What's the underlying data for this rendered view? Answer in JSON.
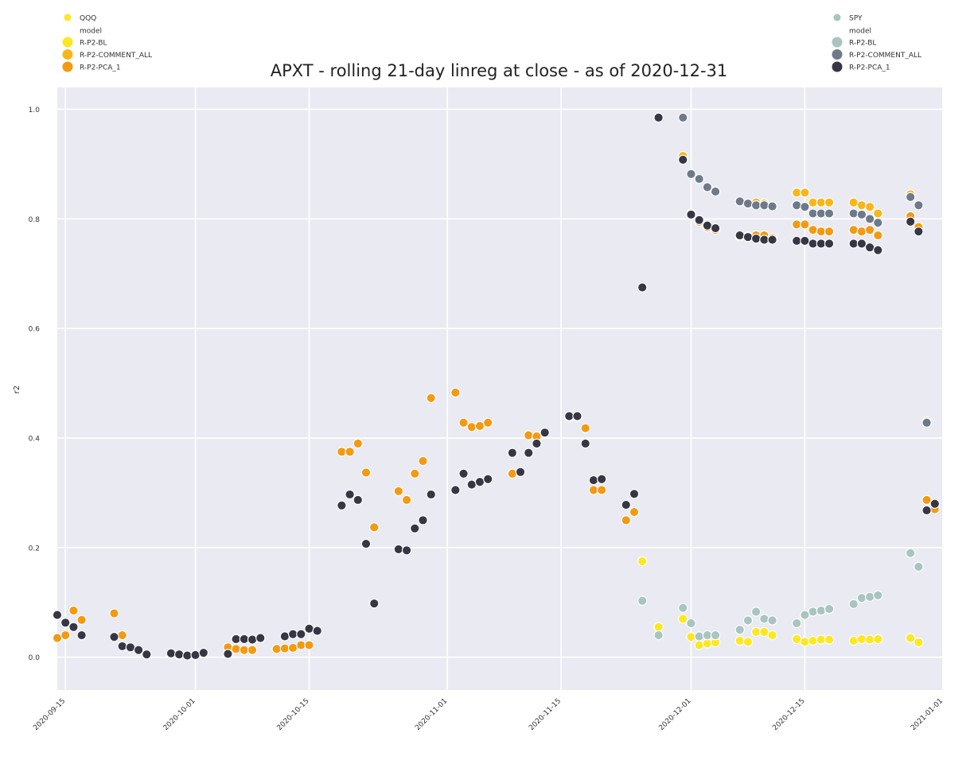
{
  "chart_data": {
    "type": "scatter",
    "title": "APXT - rolling 21-day linreg at close - as of 2020-12-31",
    "xlabel": "",
    "ylabel": "r2",
    "xlim": [
      "2020-09-14",
      "2021-01-01"
    ],
    "ylim": [
      -0.06,
      1.04
    ],
    "x_ticks": [
      "2020-09-15",
      "2020-10-01",
      "2020-10-15",
      "2020-11-01",
      "2020-11-15",
      "2020-12-01",
      "2020-12-15",
      "2021-01-01"
    ],
    "y_ticks": [
      "0.0",
      "0.2",
      "0.4",
      "0.6",
      "0.8",
      "1.0"
    ],
    "grid": true,
    "legends": [
      {
        "placement": "top-left",
        "title": "QQQ",
        "subtitle": "model",
        "items": [
          {
            "label": "R-P2-BL",
            "color": "#fde725"
          },
          {
            "label": "R-P2-COMMENT_ALL",
            "color": "#f7b718"
          },
          {
            "label": "R-P2-PCA_1",
            "color": "#f29a12"
          }
        ]
      },
      {
        "placement": "top-right",
        "title": "SPY",
        "subtitle": "model",
        "items": [
          {
            "label": "R-P2-BL",
            "color": "#a8c5c0"
          },
          {
            "label": "R-P2-COMMENT_ALL",
            "color": "#6e7a8a"
          },
          {
            "label": "R-P2-PCA_1",
            "color": "#363645"
          }
        ]
      }
    ],
    "series": [
      {
        "benchmark": "QQQ",
        "model": "R-P2-PCA_1",
        "color": "#f29a12",
        "points": [
          [
            "2020-09-14",
            0.035
          ],
          [
            "2020-09-15",
            0.04
          ],
          [
            "2020-09-16",
            0.085
          ],
          [
            "2020-09-17",
            0.068
          ],
          [
            "2020-09-21",
            0.08
          ],
          [
            "2020-09-22",
            0.04
          ],
          [
            "2020-09-28",
            0.006
          ],
          [
            "2020-09-29",
            0.004
          ],
          [
            "2020-10-05",
            0.018
          ],
          [
            "2020-10-06",
            0.015
          ],
          [
            "2020-10-07",
            0.013
          ],
          [
            "2020-10-08",
            0.013
          ],
          [
            "2020-10-11",
            0.015
          ],
          [
            "2020-10-12",
            0.016
          ],
          [
            "2020-10-13",
            0.017
          ],
          [
            "2020-10-14",
            0.022
          ],
          [
            "2020-10-15",
            0.022
          ],
          [
            "2020-10-19",
            0.375
          ],
          [
            "2020-10-20",
            0.375
          ],
          [
            "2020-10-21",
            0.39
          ],
          [
            "2020-10-22",
            0.337
          ],
          [
            "2020-10-23",
            0.237
          ],
          [
            "2020-10-26",
            0.303
          ],
          [
            "2020-10-27",
            0.287
          ],
          [
            "2020-10-28",
            0.335
          ],
          [
            "2020-10-29",
            0.358
          ],
          [
            "2020-10-30",
            0.473
          ],
          [
            "2020-11-02",
            0.483
          ],
          [
            "2020-11-03",
            0.428
          ],
          [
            "2020-11-04",
            0.42
          ],
          [
            "2020-11-05",
            0.422
          ],
          [
            "2020-11-06",
            0.428
          ],
          [
            "2020-11-09",
            0.335
          ],
          [
            "2020-11-11",
            0.405
          ],
          [
            "2020-11-12",
            0.403
          ],
          [
            "2020-11-13",
            0.41
          ],
          [
            "2020-11-16",
            0.438
          ],
          [
            "2020-11-17",
            0.438
          ],
          [
            "2020-11-18",
            0.418
          ],
          [
            "2020-11-19",
            0.305
          ],
          [
            "2020-11-20",
            0.305
          ],
          [
            "2020-11-23",
            0.25
          ],
          [
            "2020-11-24",
            0.265
          ],
          [
            "2020-11-30",
            0.91
          ],
          [
            "2020-12-01",
            0.81
          ],
          [
            "2020-12-02",
            0.795
          ],
          [
            "2020-12-03",
            0.785
          ],
          [
            "2020-12-04",
            0.78
          ],
          [
            "2020-12-07",
            0.768
          ],
          [
            "2020-12-08",
            0.768
          ],
          [
            "2020-12-09",
            0.77
          ],
          [
            "2020-12-10",
            0.77
          ],
          [
            "2020-12-11",
            0.765
          ],
          [
            "2020-12-14",
            0.79
          ],
          [
            "2020-12-15",
            0.79
          ],
          [
            "2020-12-16",
            0.78
          ],
          [
            "2020-12-17",
            0.777
          ],
          [
            "2020-12-18",
            0.777
          ],
          [
            "2020-12-21",
            0.78
          ],
          [
            "2020-12-22",
            0.777
          ],
          [
            "2020-12-23",
            0.78
          ],
          [
            "2020-12-24",
            0.77
          ],
          [
            "2020-12-28",
            0.805
          ],
          [
            "2020-12-29",
            0.785
          ],
          [
            "2020-12-30",
            0.287
          ],
          [
            "2020-12-31",
            0.27
          ]
        ]
      },
      {
        "benchmark": "QQQ",
        "model": "R-P2-COMMENT_ALL",
        "color": "#f7b718",
        "points": [
          [
            "2020-11-30",
            0.915
          ],
          [
            "2020-12-09",
            0.83
          ],
          [
            "2020-12-10",
            0.828
          ],
          [
            "2020-12-14",
            0.848
          ],
          [
            "2020-12-15",
            0.848
          ],
          [
            "2020-12-16",
            0.83
          ],
          [
            "2020-12-17",
            0.83
          ],
          [
            "2020-12-18",
            0.83
          ],
          [
            "2020-12-21",
            0.83
          ],
          [
            "2020-12-22",
            0.825
          ],
          [
            "2020-12-23",
            0.822
          ],
          [
            "2020-12-24",
            0.81
          ],
          [
            "2020-12-28",
            0.845
          ],
          [
            "2020-12-30",
            0.43
          ]
        ]
      },
      {
        "benchmark": "QQQ",
        "model": "R-P2-BL",
        "color": "#fde725",
        "points": [
          [
            "2020-11-25",
            0.175
          ],
          [
            "2020-11-27",
            0.055
          ],
          [
            "2020-11-30",
            0.07
          ],
          [
            "2020-12-01",
            0.037
          ],
          [
            "2020-12-02",
            0.022
          ],
          [
            "2020-12-03",
            0.025
          ],
          [
            "2020-12-04",
            0.027
          ],
          [
            "2020-12-07",
            0.03
          ],
          [
            "2020-12-08",
            0.028
          ],
          [
            "2020-12-09",
            0.046
          ],
          [
            "2020-12-10",
            0.046
          ],
          [
            "2020-12-11",
            0.04
          ],
          [
            "2020-12-14",
            0.033
          ],
          [
            "2020-12-15",
            0.028
          ],
          [
            "2020-12-16",
            0.03
          ],
          [
            "2020-12-17",
            0.032
          ],
          [
            "2020-12-18",
            0.032
          ],
          [
            "2020-12-21",
            0.03
          ],
          [
            "2020-12-22",
            0.033
          ],
          [
            "2020-12-23",
            0.032
          ],
          [
            "2020-12-24",
            0.033
          ],
          [
            "2020-12-28",
            0.035
          ],
          [
            "2020-12-29",
            0.027
          ]
        ]
      },
      {
        "benchmark": "SPY",
        "model": "R-P2-BL",
        "color": "#a8c5c0",
        "points": [
          [
            "2020-11-25",
            0.103
          ],
          [
            "2020-11-27",
            0.04
          ],
          [
            "2020-11-30",
            0.09
          ],
          [
            "2020-12-01",
            0.062
          ],
          [
            "2020-12-02",
            0.038
          ],
          [
            "2020-12-03",
            0.04
          ],
          [
            "2020-12-04",
            0.04
          ],
          [
            "2020-12-07",
            0.05
          ],
          [
            "2020-12-08",
            0.067
          ],
          [
            "2020-12-09",
            0.083
          ],
          [
            "2020-12-10",
            0.07
          ],
          [
            "2020-12-11",
            0.067
          ],
          [
            "2020-12-14",
            0.062
          ],
          [
            "2020-12-15",
            0.077
          ],
          [
            "2020-12-16",
            0.083
          ],
          [
            "2020-12-17",
            0.085
          ],
          [
            "2020-12-18",
            0.088
          ],
          [
            "2020-12-21",
            0.097
          ],
          [
            "2020-12-22",
            0.108
          ],
          [
            "2020-12-23",
            0.11
          ],
          [
            "2020-12-24",
            0.113
          ],
          [
            "2020-12-28",
            0.19
          ],
          [
            "2020-12-29",
            0.165
          ]
        ]
      },
      {
        "benchmark": "SPY",
        "model": "R-P2-COMMENT_ALL",
        "color": "#6e7a8a",
        "points": [
          [
            "2020-11-30",
            0.985
          ],
          [
            "2020-12-01",
            0.882
          ],
          [
            "2020-12-02",
            0.873
          ],
          [
            "2020-12-03",
            0.858
          ],
          [
            "2020-12-04",
            0.85
          ],
          [
            "2020-12-07",
            0.832
          ],
          [
            "2020-12-08",
            0.828
          ],
          [
            "2020-12-09",
            0.825
          ],
          [
            "2020-12-10",
            0.825
          ],
          [
            "2020-12-11",
            0.823
          ],
          [
            "2020-12-14",
            0.825
          ],
          [
            "2020-12-15",
            0.822
          ],
          [
            "2020-12-16",
            0.81
          ],
          [
            "2020-12-17",
            0.81
          ],
          [
            "2020-12-18",
            0.81
          ],
          [
            "2020-12-21",
            0.81
          ],
          [
            "2020-12-22",
            0.808
          ],
          [
            "2020-12-23",
            0.8
          ],
          [
            "2020-12-24",
            0.793
          ],
          [
            "2020-12-28",
            0.84
          ],
          [
            "2020-12-29",
            0.825
          ],
          [
            "2020-12-30",
            0.428
          ]
        ]
      },
      {
        "benchmark": "SPY",
        "model": "R-P2-PCA_1",
        "color": "#363645",
        "points": [
          [
            "2020-09-14",
            0.077
          ],
          [
            "2020-09-15",
            0.063
          ],
          [
            "2020-09-16",
            0.055
          ],
          [
            "2020-09-17",
            0.04
          ],
          [
            "2020-09-21",
            0.037
          ],
          [
            "2020-09-22",
            0.02
          ],
          [
            "2020-09-23",
            0.018
          ],
          [
            "2020-09-24",
            0.013
          ],
          [
            "2020-09-25",
            0.005
          ],
          [
            "2020-09-28",
            0.007
          ],
          [
            "2020-09-29",
            0.005
          ],
          [
            "2020-09-30",
            0.003
          ],
          [
            "2020-10-01",
            0.004
          ],
          [
            "2020-10-02",
            0.008
          ],
          [
            "2020-10-05",
            0.006
          ],
          [
            "2020-10-06",
            0.033
          ],
          [
            "2020-10-07",
            0.033
          ],
          [
            "2020-10-08",
            0.032
          ],
          [
            "2020-10-09",
            0.035
          ],
          [
            "2020-10-12",
            0.038
          ],
          [
            "2020-10-13",
            0.042
          ],
          [
            "2020-10-14",
            0.042
          ],
          [
            "2020-10-15",
            0.052
          ],
          [
            "2020-10-16",
            0.048
          ],
          [
            "2020-10-19",
            0.277
          ],
          [
            "2020-10-20",
            0.297
          ],
          [
            "2020-10-21",
            0.287
          ],
          [
            "2020-10-22",
            0.207
          ],
          [
            "2020-10-23",
            0.098
          ],
          [
            "2020-10-26",
            0.197
          ],
          [
            "2020-10-27",
            0.195
          ],
          [
            "2020-10-28",
            0.235
          ],
          [
            "2020-10-29",
            0.25
          ],
          [
            "2020-10-30",
            0.297
          ],
          [
            "2020-11-02",
            0.305
          ],
          [
            "2020-11-03",
            0.335
          ],
          [
            "2020-11-04",
            0.315
          ],
          [
            "2020-11-05",
            0.32
          ],
          [
            "2020-11-06",
            0.325
          ],
          [
            "2020-11-09",
            0.373
          ],
          [
            "2020-11-10",
            0.338
          ],
          [
            "2020-11-11",
            0.373
          ],
          [
            "2020-11-12",
            0.39
          ],
          [
            "2020-11-13",
            0.41
          ],
          [
            "2020-11-16",
            0.44
          ],
          [
            "2020-11-17",
            0.44
          ],
          [
            "2020-11-18",
            0.39
          ],
          [
            "2020-11-19",
            0.323
          ],
          [
            "2020-11-20",
            0.325
          ],
          [
            "2020-11-23",
            0.278
          ],
          [
            "2020-11-24",
            0.298
          ],
          [
            "2020-11-25",
            0.675
          ],
          [
            "2020-11-27",
            0.985
          ],
          [
            "2020-11-30",
            0.908
          ],
          [
            "2020-12-01",
            0.808
          ],
          [
            "2020-12-02",
            0.798
          ],
          [
            "2020-12-03",
            0.788
          ],
          [
            "2020-12-04",
            0.783
          ],
          [
            "2020-12-07",
            0.77
          ],
          [
            "2020-12-08",
            0.767
          ],
          [
            "2020-12-09",
            0.764
          ],
          [
            "2020-12-10",
            0.762
          ],
          [
            "2020-12-11",
            0.762
          ],
          [
            "2020-12-14",
            0.76
          ],
          [
            "2020-12-15",
            0.76
          ],
          [
            "2020-12-16",
            0.755
          ],
          [
            "2020-12-17",
            0.755
          ],
          [
            "2020-12-18",
            0.755
          ],
          [
            "2020-12-21",
            0.755
          ],
          [
            "2020-12-22",
            0.755
          ],
          [
            "2020-12-23",
            0.748
          ],
          [
            "2020-12-24",
            0.743
          ],
          [
            "2020-12-28",
            0.795
          ],
          [
            "2020-12-29",
            0.777
          ],
          [
            "2020-12-30",
            0.268
          ],
          [
            "2020-12-31",
            0.28
          ]
        ]
      }
    ]
  }
}
